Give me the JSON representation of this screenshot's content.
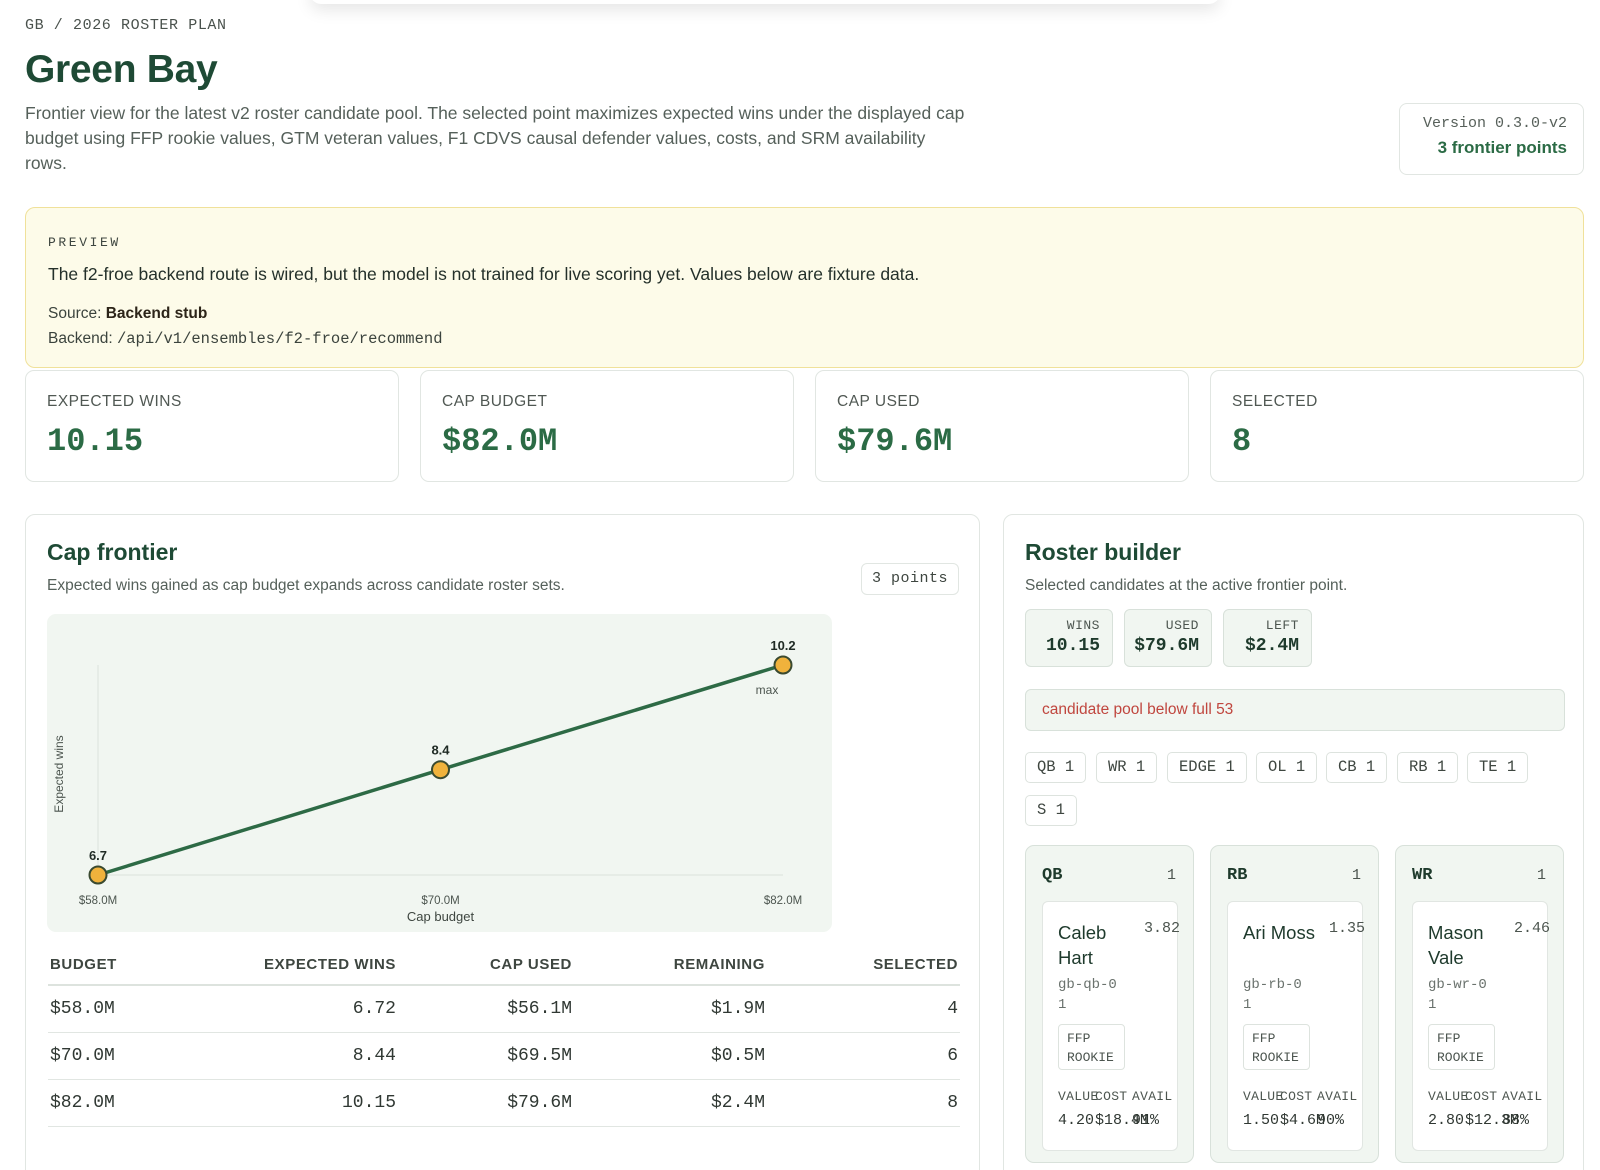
{
  "header": {
    "breadcrumb": "GB / 2026 ROSTER PLAN",
    "title": "Green Bay",
    "description": "Frontier view for the latest v2 roster candidate pool. The selected point maximizes expected wins under the displayed cap budget using FFP rookie values, GTM veteran values, F1 CDVS causal defender values, costs, and SRM availability rows.",
    "version": "Version 0.3.0-v2",
    "frontier_points": "3 frontier points"
  },
  "preview": {
    "label": "PREVIEW",
    "message": "The f2-froe backend route is wired, but the model is not trained for live scoring yet. Values below are fixture data.",
    "source_label": "Source:",
    "source_value": "Backend stub",
    "backend_label": "Backend:",
    "backend_value": "/api/v1/ensembles/f2-froe/recommend",
    "colors": {
      "background": "#fdfbe9",
      "border": "#f0e19a"
    }
  },
  "stats": [
    {
      "label": "EXPECTED WINS",
      "value": "10.15"
    },
    {
      "label": "CAP BUDGET",
      "value": "$82.0M"
    },
    {
      "label": "CAP USED",
      "value": "$79.6M"
    },
    {
      "label": "SELECTED",
      "value": "8"
    }
  ],
  "frontier": {
    "title": "Cap frontier",
    "subtitle": "Expected wins gained as cap budget expands across candidate roster sets.",
    "points_badge": "3 points",
    "columns": [
      "BUDGET",
      "EXPECTED WINS",
      "CAP USED",
      "REMAINING",
      "SELECTED"
    ],
    "rows": [
      [
        "$58.0M",
        "6.72",
        "$56.1M",
        "$1.9M",
        "4"
      ],
      [
        "$70.0M",
        "8.44",
        "$69.5M",
        "$0.5M",
        "6"
      ],
      [
        "$82.0M",
        "10.15",
        "$79.6M",
        "$2.4M",
        "8"
      ]
    ]
  },
  "chart_data": {
    "type": "line",
    "x": [
      58.0,
      70.0,
      82.0
    ],
    "y": [
      6.72,
      8.44,
      10.15
    ],
    "point_labels": [
      "6.7",
      "8.4",
      "10.2"
    ],
    "x_tick_labels": [
      "$58.0M",
      "$70.0M",
      "$82.0M"
    ],
    "xlabel": "Cap budget",
    "ylabel": "Expected wins",
    "max_label": "max",
    "xlim": [
      58.0,
      82.0
    ],
    "ylim": [
      6.72,
      10.15
    ],
    "colors": {
      "line": "#2d6a45",
      "point": "#f0b23c",
      "point_stroke": "#3a4a30",
      "background": "#f1f6f1"
    }
  },
  "roster": {
    "title": "Roster builder",
    "subtitle": "Selected candidates at the active frontier point.",
    "summary": [
      {
        "label": "WINS",
        "value": "10.15"
      },
      {
        "label": "USED",
        "value": "$79.6M"
      },
      {
        "label": "LEFT",
        "value": "$2.4M"
      }
    ],
    "warning": "candidate pool below full 53",
    "position_chips": [
      "QB 1",
      "WR 1",
      "EDGE 1",
      "OL 1",
      "CB 1",
      "RB 1",
      "TE 1",
      "S 1"
    ],
    "cards": [
      {
        "position": "QB",
        "count": "1",
        "name": "Caleb Hart",
        "score": "3.82",
        "id": "gb-qb-01",
        "tag_line1": "FFP",
        "tag_line2": "ROOKIE",
        "value_label": "VALUE",
        "cost_label": "COST",
        "avail_label": "AVAIL",
        "value": "4.20",
        "cost": "$18.4M",
        "avail": "91%"
      },
      {
        "position": "RB",
        "count": "1",
        "name": "Ari Moss",
        "score": "1.35",
        "id": "gb-rb-01",
        "tag_line1": "FFP",
        "tag_line2": "ROOKIE",
        "value_label": "VALUE",
        "cost_label": "COST",
        "avail_label": "AVAIL",
        "value": "1.50",
        "cost": "$4.6M",
        "avail": "90%"
      },
      {
        "position": "WR",
        "count": "1",
        "name": "Mason Vale",
        "score": "2.46",
        "id": "gb-wr-01",
        "tag_line1": "FFP",
        "tag_line2": "ROOKIE",
        "value_label": "VALUE",
        "cost_label": "COST",
        "avail_label": "AVAIL",
        "value": "2.80",
        "cost": "$12.3M",
        "avail": "88%"
      }
    ]
  },
  "theme": {
    "accent": "#2b6b45",
    "title": "#1e4a35",
    "warning_text": "#c0463e"
  }
}
